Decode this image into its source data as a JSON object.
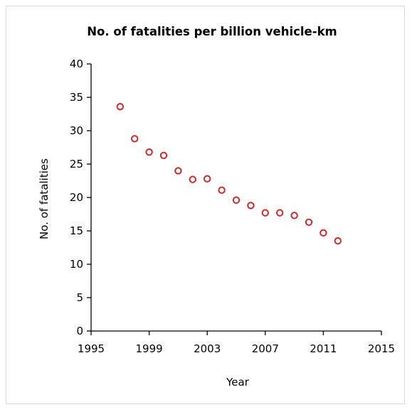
{
  "chart_data": {
    "type": "scatter",
    "title": "No. of fatalities per billion vehicle-km",
    "xlabel": "Year",
    "ylabel": "No. of fatalities",
    "xlim": [
      1995,
      2015
    ],
    "ylim": [
      0,
      40
    ],
    "x_ticks": [
      "1995",
      "1999",
      "2003",
      "2007",
      "2011",
      "2015"
    ],
    "y_ticks": [
      "0",
      "5",
      "10",
      "15",
      "20",
      "25",
      "30",
      "35",
      "40"
    ],
    "grid": false,
    "legend": "none",
    "marker": "hollow-circle",
    "marker_color": "#cc2a2a",
    "series": [
      {
        "x": [
          1997,
          1998,
          1999,
          2000,
          2001,
          2002,
          2003,
          2004,
          2005,
          2006,
          2007,
          2008,
          2009,
          2010,
          2011,
          2012
        ],
        "y": [
          33.6,
          28.8,
          26.8,
          26.3,
          24.0,
          22.7,
          22.8,
          21.1,
          19.6,
          18.8,
          17.7,
          17.7,
          17.3,
          16.3,
          14.7,
          13.5
        ]
      }
    ]
  }
}
